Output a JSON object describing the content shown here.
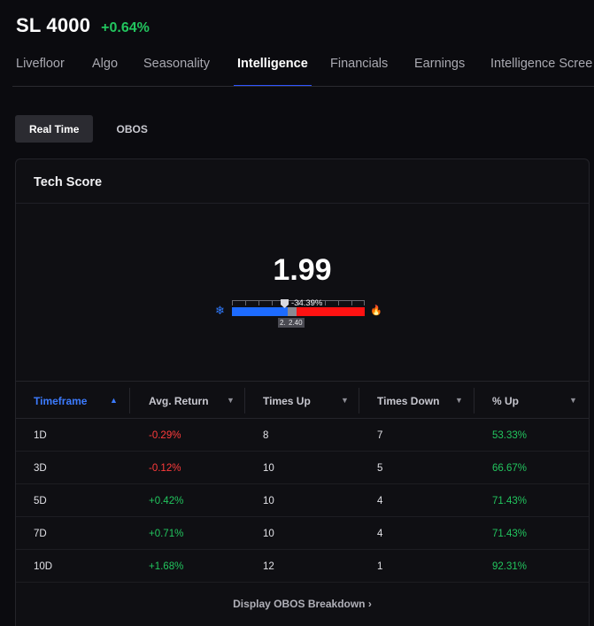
{
  "header": {
    "ticker": "SL 4000",
    "change": "+0.64%"
  },
  "tabs": [
    {
      "label": "Livefloor",
      "active": false
    },
    {
      "label": "Algo",
      "active": false
    },
    {
      "label": "Seasonality",
      "active": false
    },
    {
      "label": "Intelligence",
      "active": true
    },
    {
      "label": "Financials",
      "active": false
    },
    {
      "label": "Earnings",
      "active": false
    },
    {
      "label": "Intelligence Scree",
      "active": false
    }
  ],
  "subtabs": [
    {
      "label": "Real Time",
      "active": true
    },
    {
      "label": "OBOS",
      "active": false
    }
  ],
  "card": {
    "title": "Tech Score",
    "score": "1.99",
    "gauge": {
      "percent_label": "-34.39%",
      "low_value": "2.",
      "high_value": "2.40",
      "icons": {
        "left": "snowflake-icon",
        "right": "flame-icon"
      },
      "colors": {
        "cold": "#1d6bff",
        "hot": "#ff1212"
      }
    }
  },
  "table": {
    "columns": [
      {
        "label": "Timeframe",
        "sorted": true,
        "chevron": "▲"
      },
      {
        "label": "Avg. Return",
        "sorted": false,
        "chevron": "▼"
      },
      {
        "label": "Times Up",
        "sorted": false,
        "chevron": "▼"
      },
      {
        "label": "Times Down",
        "sorted": false,
        "chevron": "▼"
      },
      {
        "label": "% Up",
        "sorted": false,
        "chevron": "▼"
      }
    ],
    "rows": [
      {
        "timeframe": "1D",
        "avg_return": "-0.29%",
        "times_up": "8",
        "times_down": "7",
        "pct_up": "53.33%"
      },
      {
        "timeframe": "3D",
        "avg_return": "-0.12%",
        "times_up": "10",
        "times_down": "5",
        "pct_up": "66.67%"
      },
      {
        "timeframe": "5D",
        "avg_return": "+0.42%",
        "times_up": "10",
        "times_down": "4",
        "pct_up": "71.43%"
      },
      {
        "timeframe": "7D",
        "avg_return": "+0.71%",
        "times_up": "10",
        "times_down": "4",
        "pct_up": "71.43%"
      },
      {
        "timeframe": "10D",
        "avg_return": "+1.68%",
        "times_up": "12",
        "times_down": "1",
        "pct_up": "92.31%"
      }
    ]
  },
  "footer": {
    "link_label": "Display OBOS Breakdown",
    "link_chevron": "›"
  },
  "colors": {
    "accent": "#2f55ff",
    "positive": "#22c55e",
    "negative": "#ff3b3b"
  }
}
